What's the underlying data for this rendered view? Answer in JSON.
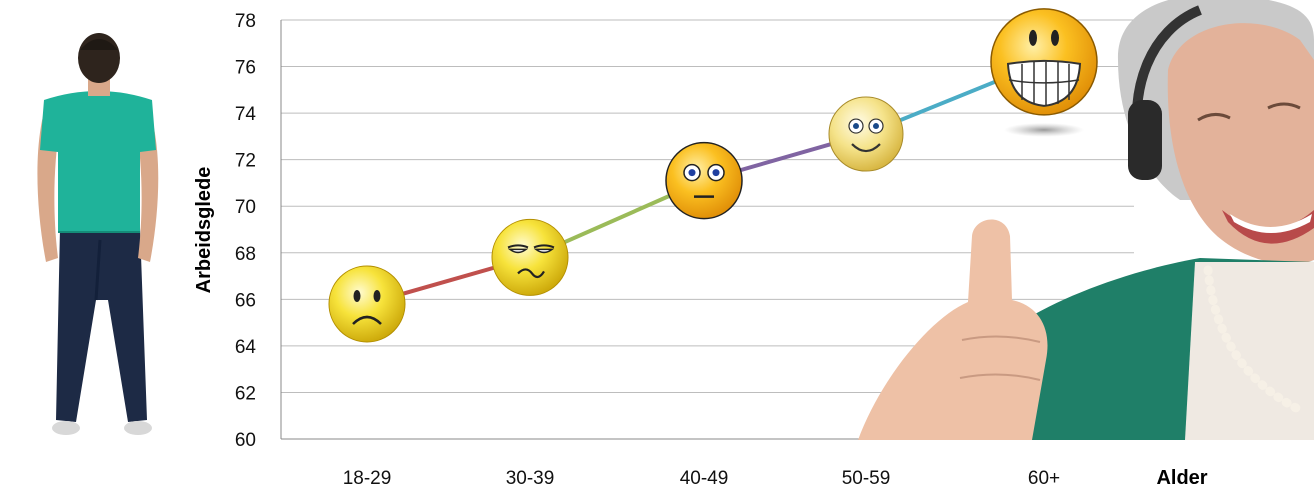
{
  "chart_data": {
    "type": "line",
    "title": "",
    "xlabel": "Alder",
    "ylabel": "Arbeidsglede",
    "categories": [
      "18-29",
      "30-39",
      "40-49",
      "50-59",
      "60+"
    ],
    "values": [
      65.8,
      67.8,
      71.1,
      73.1,
      76.2
    ],
    "segment_colors": [
      "#c0504d",
      "#9bbb59",
      "#8064a2",
      "#4bacc6"
    ],
    "ylim": [
      60,
      78
    ],
    "yticks": [
      60,
      62,
      64,
      66,
      68,
      70,
      72,
      74,
      76,
      78
    ],
    "grid": true,
    "markers": [
      "sad-face-icon",
      "skeptical-face-icon",
      "neutral-face-icon",
      "smiling-face-icon",
      "grinning-face-icon"
    ],
    "decorations": [
      "young-man-back-view-image",
      "senior-woman-thumbs-up-image"
    ]
  }
}
